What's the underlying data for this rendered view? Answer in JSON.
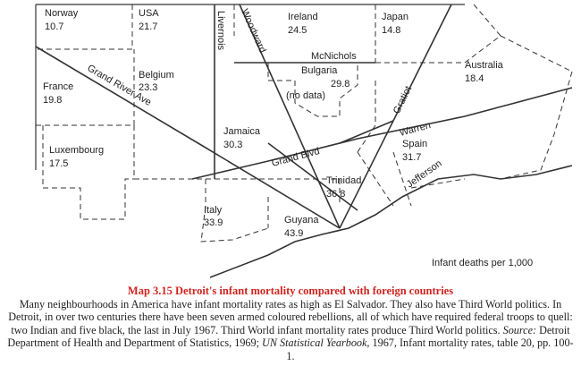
{
  "map": {
    "regions": [
      {
        "name": "Norway",
        "value": 10.7
      },
      {
        "name": "USA",
        "value": 21.7
      },
      {
        "name": "Ireland",
        "value": 24.5
      },
      {
        "name": "Japan",
        "value": 14.8
      },
      {
        "name": "Australia",
        "value": 18.4
      },
      {
        "name": "Bulgaria",
        "value": 29.8
      },
      {
        "name": "Belgium",
        "value": 23.3
      },
      {
        "name": "France",
        "value": 19.8
      },
      {
        "name": "Luxembourg",
        "value": 17.5
      },
      {
        "name": "Jamaica",
        "value": 30.3
      },
      {
        "name": "Spain",
        "value": 31.7
      },
      {
        "name": "Trinidad",
        "value": 36.8
      },
      {
        "name": "Italy",
        "value": 33.9
      },
      {
        "name": "Guyana",
        "value": 43.9
      }
    ],
    "no_data_label": "(no data)",
    "streets": [
      "Livernois",
      "Woodward",
      "McNichols",
      "Grand River Ave",
      "Gratiot",
      "Grand Blvd",
      "Warren",
      "Jefferson"
    ],
    "legend_note": "Infant deaths per 1,000"
  },
  "caption": {
    "title": "Map 3.15 Detroit's infant mortality compared with foreign countries",
    "body": "Many neighbourhoods in America have infant mortality rates as high as El Salvador. They also have Third World politics. In Detroit, in over two centuries there have been seven armed coloured rebellions, all of which have required federal troops to quell: two Indian and five black, the last in July 1967. Third World infant mortality rates produce Third World politics.",
    "source_label": "Source:",
    "source_text": "Detroit Department of Health and Department of Statistics, 1969;",
    "source_italic": "UN Statistical Yearbook",
    "source_tail": ", 1967, Infant mortality rates, table 20, pp. 100-1."
  }
}
